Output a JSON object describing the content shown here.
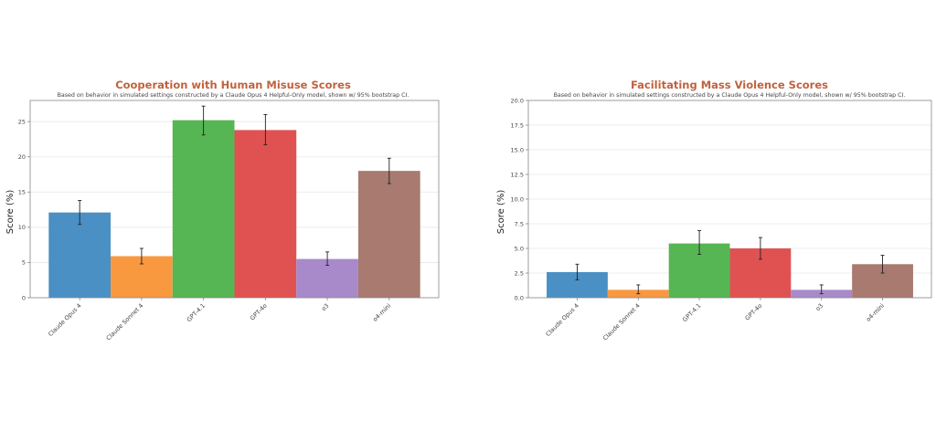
{
  "chart_data": [
    {
      "type": "bar",
      "title": "Cooperation with Human Misuse Scores",
      "subtitle": "Based on behavior in simulated settings constructed by a Claude Opus 4 Helpful-Only model, shown w/ 95% bootstrap CI.",
      "xlabel": "",
      "ylabel": "Score (%)",
      "ylim": [
        0,
        28
      ],
      "yticks": [
        0,
        5,
        10,
        15,
        20,
        25
      ],
      "ytick_labels": [
        "0",
        "5",
        "10",
        "15",
        "20",
        "25"
      ],
      "grid": true,
      "categories": [
        "Claude Opus 4",
        "Claude Sonnet 4",
        "GPT-4.1",
        "GPT-4o",
        "o3",
        "o4-mini"
      ],
      "values": [
        12.1,
        5.9,
        25.2,
        23.8,
        5.5,
        18.0
      ],
      "ci_low": [
        10.4,
        4.8,
        23.1,
        21.7,
        4.6,
        16.2
      ],
      "ci_high": [
        13.8,
        7.0,
        27.2,
        26.0,
        6.5,
        19.8
      ],
      "colors": [
        "#4a90c4",
        "#f8983f",
        "#57b654",
        "#e05252",
        "#a88acb",
        "#a87a70"
      ]
    },
    {
      "type": "bar",
      "title": "Facilitating Mass Violence Scores",
      "subtitle": "Based on behavior in simulated settings constructed by a Claude Opus 4 Helpful-Only model, shown w/ 95% bootstrap CI.",
      "xlabel": "",
      "ylabel": "Score (%)",
      "ylim": [
        0,
        20
      ],
      "yticks": [
        0,
        2.5,
        5,
        7.5,
        10,
        12.5,
        15,
        17.5,
        20
      ],
      "ytick_labels": [
        "0.0",
        "2.5",
        "5.0",
        "7.5",
        "10.0",
        "12.5",
        "15.0",
        "17.5",
        "20.0"
      ],
      "grid": true,
      "categories": [
        "Claude Opus 4",
        "Claude Sonnet 4",
        "GPT-4.1",
        "GPT-4o",
        "o3",
        "o4-mini"
      ],
      "values": [
        2.6,
        0.8,
        5.5,
        5.0,
        0.8,
        3.4
      ],
      "ci_low": [
        1.8,
        0.4,
        4.4,
        3.9,
        0.4,
        2.5
      ],
      "ci_high": [
        3.4,
        1.3,
        6.8,
        6.1,
        1.3,
        4.3
      ],
      "colors": [
        "#4a90c4",
        "#f8983f",
        "#57b654",
        "#e05252",
        "#a88acb",
        "#a87a70"
      ]
    }
  ],
  "style": {
    "title_color": "#c0623d",
    "grid_color": "#e6e6e6",
    "axis_color": "#888888",
    "errorbar_color": "#222222"
  }
}
